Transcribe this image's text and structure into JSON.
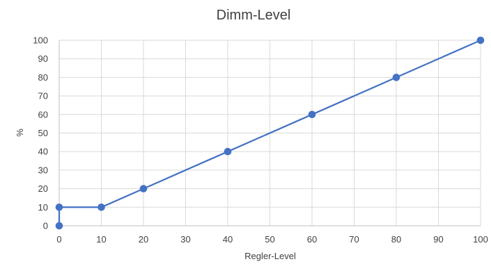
{
  "chart_data": {
    "type": "scatter",
    "title": "Dimm-Level",
    "xlabel": "Regler-Level",
    "ylabel": "%",
    "xlim": [
      0,
      100
    ],
    "ylim": [
      0,
      100
    ],
    "xticks": [
      "0",
      "10",
      "20",
      "30",
      "40",
      "50",
      "60",
      "70",
      "80",
      "90",
      "100"
    ],
    "yticks": [
      "0",
      "10",
      "20",
      "30",
      "40",
      "50",
      "60",
      "70",
      "80",
      "90",
      "100"
    ],
    "grid": true,
    "legend": "none",
    "series": [
      {
        "color": "#4472c4",
        "points": [
          {
            "x": 0,
            "y": 0
          },
          {
            "x": 0,
            "y": 10
          },
          {
            "x": 10,
            "y": 10
          },
          {
            "x": 20,
            "y": 20
          },
          {
            "x": 40,
            "y": 40
          },
          {
            "x": 60,
            "y": 60
          },
          {
            "x": 80,
            "y": 80
          },
          {
            "x": 100,
            "y": 100
          }
        ]
      }
    ]
  }
}
